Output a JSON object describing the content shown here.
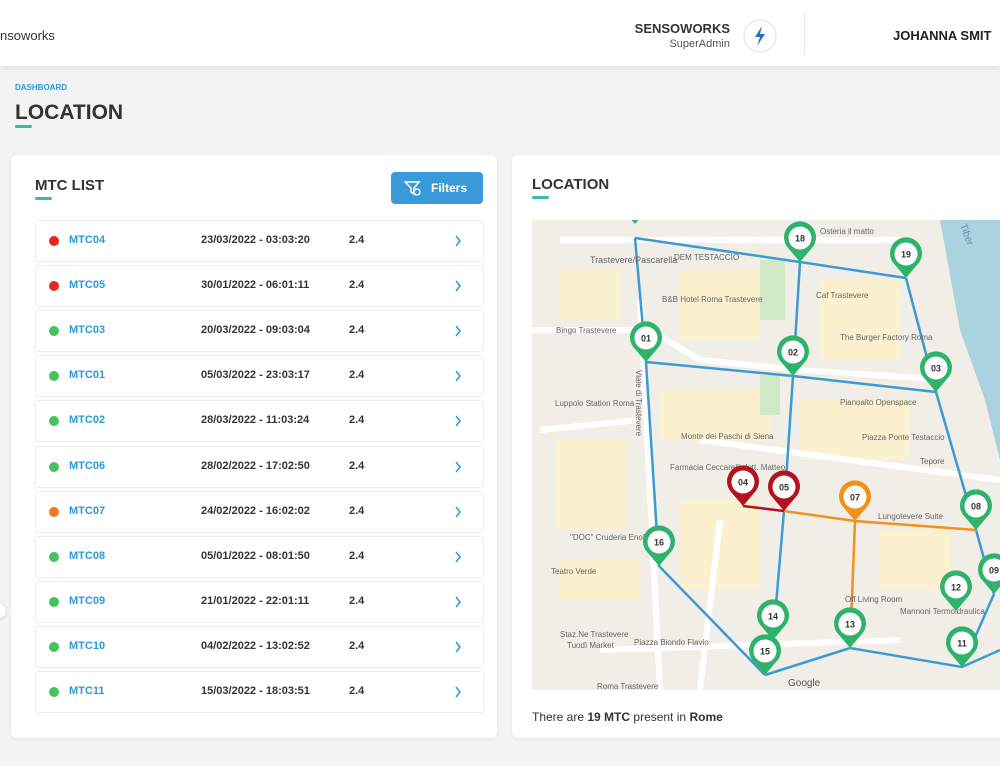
{
  "header": {
    "brand": "nsoworks",
    "org": "SENSOWORKS",
    "role": "SuperAdmin",
    "user": "JOHANNA SMIT"
  },
  "breadcrumb": "DASHBOARD",
  "title": "LOCATION",
  "list": {
    "title": "MTC LIST",
    "filter_button": "Filters",
    "rows": [
      {
        "name": "MTC04",
        "date": "23/03/2022 - 03:03:20",
        "value": "2.4",
        "status": "#e8261c"
      },
      {
        "name": "MTC05",
        "date": "30/01/2022 - 06:01:11",
        "value": "2.4",
        "status": "#e8261c"
      },
      {
        "name": "MTC03",
        "date": "20/03/2022 - 09:03:04",
        "value": "2.4",
        "status": "#45c25e"
      },
      {
        "name": "MTC01",
        "date": "05/03/2022 - 23:03:17",
        "value": "2.4",
        "status": "#45c25e"
      },
      {
        "name": "MTC02",
        "date": "28/03/2022 - 11:03:24",
        "value": "2.4",
        "status": "#45c25e"
      },
      {
        "name": "MTC06",
        "date": "28/02/2022 - 17:02:50",
        "value": "2.4",
        "status": "#45c25e"
      },
      {
        "name": "MTC07",
        "date": "24/02/2022 - 16:02:02",
        "value": "2.4",
        "status": "#f07a22"
      },
      {
        "name": "MTC08",
        "date": "05/01/2022 - 08:01:50",
        "value": "2.4",
        "status": "#45c25e"
      },
      {
        "name": "MTC09",
        "date": "21/01/2022 - 22:01:11",
        "value": "2.4",
        "status": "#45c25e"
      },
      {
        "name": "MTC10",
        "date": "04/02/2022 - 13:02:52",
        "value": "2.4",
        "status": "#45c25e"
      },
      {
        "name": "MTC11",
        "date": "15/03/2022 - 18:03:51",
        "value": "2.4",
        "status": "#45c25e"
      }
    ]
  },
  "map": {
    "title": "LOCATION",
    "markers": [
      {
        "label": "01",
        "color": "#2fb36a"
      },
      {
        "label": "02",
        "color": "#2fb36a"
      },
      {
        "label": "03",
        "color": "#2fb36a"
      },
      {
        "label": "04",
        "color": "#b3121f"
      },
      {
        "label": "05",
        "color": "#b3121f"
      },
      {
        "label": "07",
        "color": "#f0921c"
      },
      {
        "label": "08",
        "color": "#2fb36a"
      },
      {
        "label": "09",
        "color": "#2fb36a"
      },
      {
        "label": "11",
        "color": "#2fb36a"
      },
      {
        "label": "12",
        "color": "#2fb36a"
      },
      {
        "label": "13",
        "color": "#2fb36a"
      },
      {
        "label": "14",
        "color": "#2fb36a"
      },
      {
        "label": "15",
        "color": "#2fb36a"
      },
      {
        "label": "16",
        "color": "#2fb36a"
      },
      {
        "label": "18",
        "color": "#2fb36a"
      },
      {
        "label": "19",
        "color": "#2fb36a"
      }
    ],
    "places": [
      "Trastevere/Pascarella",
      "DEM TESTACCIO",
      "Osteria il matto",
      "Caf Trastevere",
      "B&B Hotel Roma Trastevere",
      "Bingo Trastevere",
      "Luppolo Station Roma",
      "Viale di Trastevere",
      "Monte dei Paschi di Siena",
      "Piazza Ponte Testaccio",
      "Farmacia Ceccarelli dott. Matteo",
      "The Burger Factory Roma",
      "Pianoalto Openspace",
      "Tepore",
      "Lungotevere Suite",
      "Teatro Verde",
      "\"DOC\" Cruderia EnoBistrot",
      "Staz.Ne Trastevere",
      "Tuodì Market",
      "Piazza Biondo Flavio",
      "Roma Trastevere",
      "Off Living Room",
      "Mannoni Termoidraulica",
      "Tiber",
      "Google"
    ],
    "footer": {
      "prefix": "There are",
      "count": "19 MTC",
      "middle": "present in",
      "place": "Rome"
    }
  }
}
